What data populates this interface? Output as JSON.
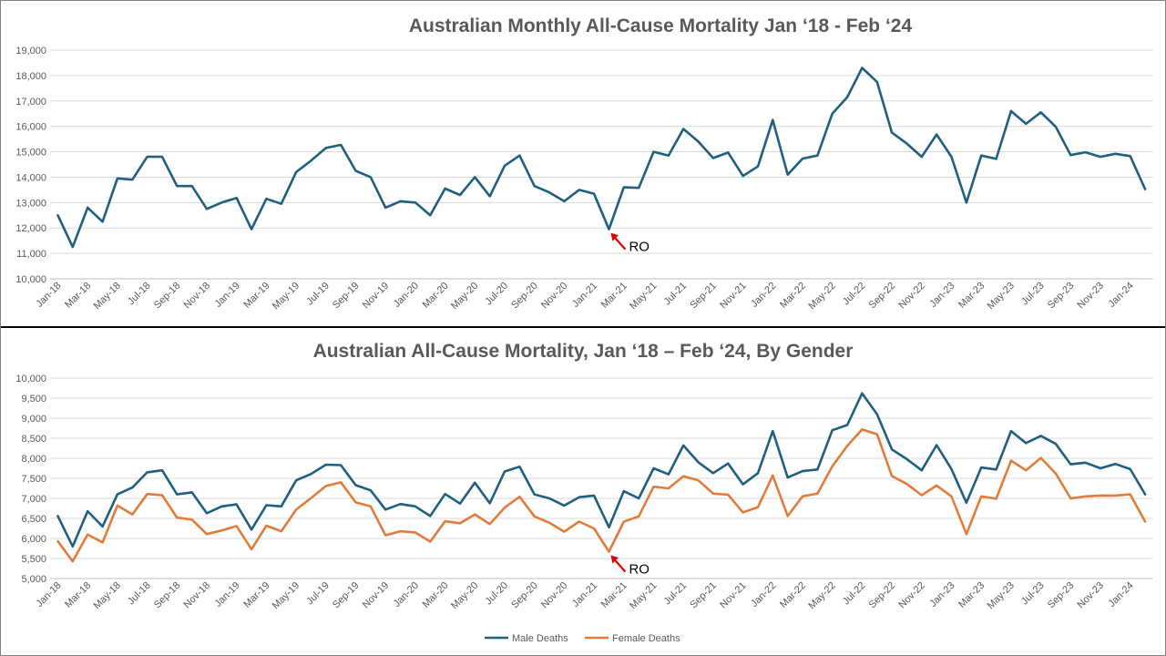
{
  "chart_data": [
    {
      "type": "line",
      "title": "Australian Monthly All-Cause Mortality Jan ‘18 - Feb ‘24",
      "xlabel": "",
      "ylabel": "",
      "ylim": [
        10000,
        19000
      ],
      "yticks": [
        "10,000",
        "11,000",
        "12,000",
        "13,000",
        "14,000",
        "15,000",
        "16,000",
        "17,000",
        "18,000",
        "19,000"
      ],
      "ytick_values": [
        10000,
        11000,
        12000,
        13000,
        14000,
        15000,
        16000,
        17000,
        18000,
        19000
      ],
      "grid": true,
      "x_tick_labels": [
        "Jan-18",
        "Mar-18",
        "May-18",
        "Jul-18",
        "Sep-18",
        "Nov-18",
        "Jan-19",
        "Mar-19",
        "May-19",
        "Jul-19",
        "Sep-19",
        "Nov-19",
        "Jan-20",
        "Mar-20",
        "May-20",
        "Jul-20",
        "Sep-20",
        "Nov-20",
        "Jan-21",
        "Mar-21",
        "May-21",
        "Jul-21",
        "Sep-21",
        "Nov-21",
        "Jan-22",
        "Mar-22",
        "May-22",
        "Jul-22",
        "Sep-22",
        "Nov-22",
        "Jan-23",
        "Mar-23",
        "May-23",
        "Jul-23",
        "Sep-23",
        "Nov-23",
        "Jan-24"
      ],
      "series": [
        {
          "color": "#1f5f7f",
          "values": [
            12500,
            11250,
            12800,
            12250,
            13950,
            13900,
            14800,
            14800,
            13650,
            13650,
            12750,
            13000,
            13180,
            11950,
            13150,
            12950,
            14200,
            14650,
            15150,
            15270,
            14250,
            14000,
            12800,
            13050,
            13000,
            12500,
            13550,
            13300,
            14000,
            13250,
            14450,
            14850,
            13650,
            13400,
            13050,
            13500,
            13350,
            11950,
            13600,
            13580,
            15000,
            14850,
            15900,
            15400,
            14750,
            14970,
            14050,
            14420,
            16250,
            14100,
            14730,
            14850,
            16500,
            17150,
            18300,
            17750,
            15750,
            15320,
            14800,
            15680,
            14800,
            13000,
            14850,
            14720,
            16600,
            16100,
            16550,
            15980,
            14870,
            14980,
            14800,
            14920,
            14830,
            13530
          ]
        }
      ],
      "annotations": [
        {
          "text": "RO",
          "x_index": 37,
          "arrow_color": "#e00000"
        }
      ]
    },
    {
      "type": "line",
      "title": "Australian All-Cause Mortality, Jan ‘18 – Feb ‘24, By Gender",
      "xlabel": "",
      "ylabel": "",
      "ylim": [
        5000,
        10000
      ],
      "yticks": [
        "5,000",
        "5,500",
        "6,000",
        "6,500",
        "7,000",
        "7,500",
        "8,000",
        "8,500",
        "9,000",
        "9,500",
        "10,000"
      ],
      "ytick_values": [
        5000,
        5500,
        6000,
        6500,
        7000,
        7500,
        8000,
        8500,
        9000,
        9500,
        10000
      ],
      "grid": true,
      "legend": "bottom",
      "x_tick_labels": [
        "Jan-18",
        "Mar-18",
        "May-18",
        "Jul-18",
        "Sep-18",
        "Nov-18",
        "Jan-19",
        "Mar-19",
        "May-19",
        "Jul-19",
        "Sep-19",
        "Nov-19",
        "Jan-20",
        "Mar-20",
        "May-20",
        "Jul-20",
        "Sep-20",
        "Nov-20",
        "Jan-21",
        "Mar-21",
        "May-21",
        "Jul-21",
        "Sep-21",
        "Nov-21",
        "Jan-22",
        "Mar-22",
        "May-22",
        "Jul-22",
        "Sep-22",
        "Nov-22",
        "Jan-23",
        "Mar-23",
        "May-23",
        "Jul-23",
        "Sep-23",
        "Nov-23",
        "Jan-24"
      ],
      "series": [
        {
          "name": "Male Deaths",
          "color": "#1f5f7f",
          "values": [
            6560,
            5800,
            6680,
            6300,
            7100,
            7270,
            7650,
            7700,
            7100,
            7150,
            6630,
            6800,
            6850,
            6220,
            6830,
            6800,
            7450,
            7610,
            7840,
            7830,
            7330,
            7200,
            6720,
            6860,
            6800,
            6560,
            7110,
            6870,
            7390,
            6880,
            7670,
            7790,
            7100,
            7000,
            6820,
            7030,
            7070,
            6280,
            7180,
            7000,
            7750,
            7600,
            8320,
            7900,
            7630,
            7870,
            7350,
            7630,
            8680,
            7520,
            7680,
            7720,
            8700,
            8830,
            9620,
            9100,
            8220,
            7980,
            7700,
            8330,
            7730,
            6890,
            7770,
            7720,
            8680,
            8380,
            8560,
            8360,
            7850,
            7890,
            7750,
            7860,
            7730,
            7100
          ]
        },
        {
          "name": "Female Deaths",
          "color": "#e37b3b",
          "values": [
            5930,
            5430,
            6100,
            5900,
            6820,
            6600,
            7110,
            7080,
            6520,
            6470,
            6110,
            6200,
            6310,
            5730,
            6320,
            6180,
            6720,
            7010,
            7310,
            7400,
            6900,
            6800,
            6080,
            6180,
            6150,
            5920,
            6430,
            6380,
            6600,
            6360,
            6770,
            7040,
            6550,
            6390,
            6170,
            6420,
            6250,
            5670,
            6420,
            6550,
            7290,
            7250,
            7550,
            7450,
            7120,
            7090,
            6650,
            6780,
            7570,
            6560,
            7050,
            7120,
            7800,
            8310,
            8720,
            8600,
            7560,
            7360,
            7080,
            7320,
            7050,
            6110,
            7050,
            6990,
            7940,
            7700,
            8010,
            7620,
            7000,
            7050,
            7070,
            7070,
            7100,
            6420
          ]
        }
      ],
      "annotations": [
        {
          "text": "RO",
          "x_index": 37,
          "arrow_color": "#e00000"
        }
      ]
    }
  ]
}
